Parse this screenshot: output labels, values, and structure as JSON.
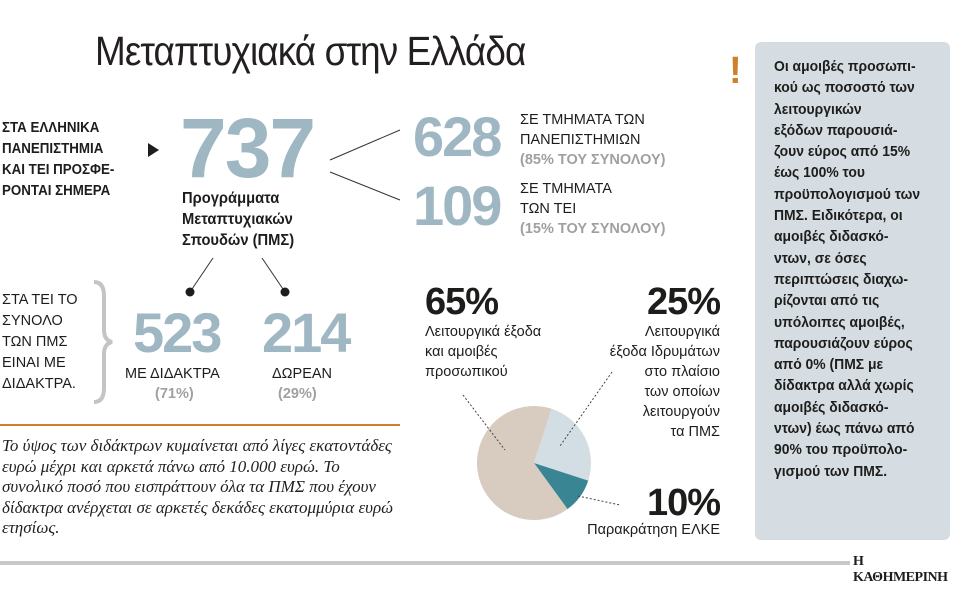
{
  "title": "Μεταπτυχιακά στην Ελλάδα",
  "lead": "ΣΤΑ ΕΛΛΗΝΙΚΑ\nΠΑΝΕΠΙΣΤΗΜΙΑ\nΚΑΙ ΤΕΙ ΠΡΟΣΦΕ-\nΡΟΝΤΑΙ ΣΗΜΕΡΑ",
  "total": {
    "value": "737",
    "label": "Προγράμματα\nΜεταπτυχιακών\nΣπουδών (ΠΜΣ)"
  },
  "universities": {
    "value": "628",
    "label": "ΣΕ ΤΜΗΜΑΤΑ ΤΩΝ\nΠΑΝΕΠΙΣΤΗΜΙΩΝ",
    "share": "(85% ΤΟΥ ΣΥΝΟΛΟΥ)"
  },
  "tei": {
    "value": "109",
    "label": "ΣΕ ΤΜΗΜΑΤΑ\nΤΩΝ ΤΕΙ",
    "share": "(15% ΤΟΥ ΣΥΝΟΛΟΥ)"
  },
  "tei_note": "ΣΤΑ ΤΕΙ ΤΟ\nΣΥΝΟΛΟ\nΤΩΝ ΠΜΣ\nΕΙΝΑΙ ΜΕ\nΔΙΔΑΚΤΡΑ.",
  "paid": {
    "value": "523",
    "label": "ΜΕ ΔΙΔΑΚΤΡΑ",
    "share": "(71%)"
  },
  "free": {
    "value": "214",
    "label": "ΔΩΡΕΑΝ",
    "share": "(29%)"
  },
  "body_text": "Το ύψος των διδάκτρων κυμαίνεται από λίγες εκατοντάδες ευρώ μέχρι και αρκετά πάνω από 10.000 ευρώ. Το συνολικό ποσό που εισπράττουν όλα τα ΠΜΣ που έχουν δίδακτρα ανέρχεται σε αρκετές δεκάδες εκατομμύρια ευρώ ετησίως.",
  "chart_data": {
    "type": "pie",
    "slices": [
      {
        "label": "Λειτουργικά έξοδα Ιδρυμάτων στο πλαίσιο των οποίων λειτουργούν τα ΠΜΣ",
        "value": 25,
        "display": "25%",
        "text": "Λειτουργικά\nέξοδα Ιδρυμάτων\nστο πλαίσιο\nτων οποίων\nλειτουργούν\nτα ΠΜΣ",
        "color": "#d3dee4"
      },
      {
        "label": "Παρακράτηση ΕΛΚΕ",
        "value": 10,
        "display": "10%",
        "text": "Παρακράτηση ΕΛΚΕ",
        "color": "#3a8593"
      },
      {
        "label": "Λειτουργικά έξοδα και αμοιβές προσωπικού",
        "value": 65,
        "display": "65%",
        "text": "Λειτουργικά έξοδα\nκαι αμοιβές\nπροσωπικού",
        "color": "#d8ccc1"
      }
    ]
  },
  "note_icon": "exclamation-icon",
  "note": "Οι αμοιβές προσωπι-\nκού ως ποσοστό των\nλειτουργικών\nεξόδων παρουσιά-\nζουν εύρος από 15%\nέως 100% του\nπροϋπολογισμού των\nΠΜΣ. Ειδικότερα, οι\nαμοιβές διδασκό-\nντων, σε όσες\nπεριπτώσεις διαχω-\nρίζονται από τις\nυπόλοιπες αμοιβές,\nπαρουσιάζουν εύρος\nαπό 0% (ΠΜΣ με\nδίδακτρα αλλά χωρίς\nαμοιβές διδασκό-\nντων) έως πάνω από\n90% του προϋπολο-\nγισμού των ΠΜΣ.",
  "brand": "Η ΚΑΘΗΜΕΡΙΝΗ",
  "colors": {
    "accent": "#d07f2a",
    "number": "#9fb7c2",
    "box": "#d5dde3"
  }
}
